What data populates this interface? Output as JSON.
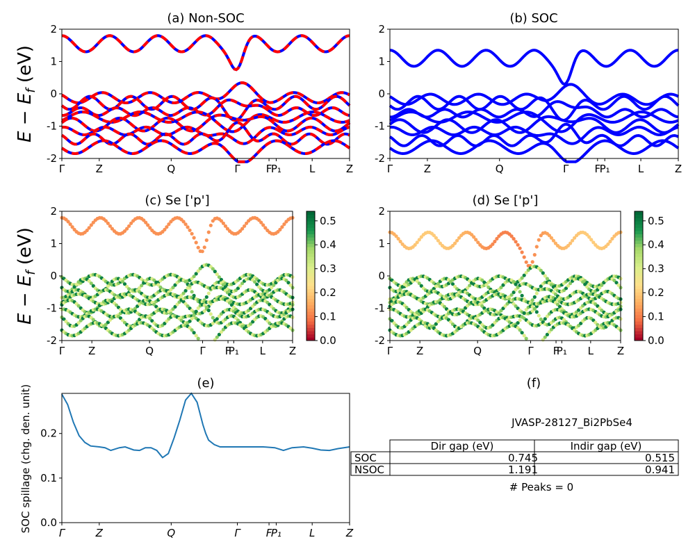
{
  "chart_data": [
    {
      "panel": "a",
      "type": "line",
      "title": "(a) Non-SOC",
      "ylabel": "E − E_f (eV)",
      "ylim": [
        -2,
        2
      ],
      "yticks": [
        -2,
        -1,
        0,
        1,
        2
      ],
      "xtick_labels": [
        "Γ",
        "Z",
        "Q",
        "Γ",
        "F",
        "P₁",
        "L",
        "Z"
      ],
      "series_colors": [
        "#0000ff",
        "#ff0000"
      ],
      "style": "blue solid bands overlaid by red dashed bands"
    },
    {
      "panel": "b",
      "type": "line",
      "title": "(b) SOC",
      "ylim": [
        -2,
        2
      ],
      "yticks": [
        -2,
        -1,
        0,
        1,
        2
      ],
      "xtick_labels": [
        "Γ",
        "Z",
        "Q",
        "Γ",
        "F",
        "P₁",
        "L",
        "Z"
      ],
      "series_colors": [
        "#0000ff"
      ]
    },
    {
      "panel": "c",
      "type": "scatter",
      "title": "(c)  Se ['p']",
      "ylabel": "E − E_f (eV)",
      "ylim": [
        -2,
        2
      ],
      "yticks": [
        -2,
        -1,
        0,
        1,
        2
      ],
      "xtick_labels": [
        "Γ",
        "Z",
        "Q",
        "Γ",
        "F",
        "P₁",
        "L",
        "Z"
      ],
      "colorbar": {
        "min": 0.0,
        "max": 0.54,
        "ticks": [
          "0.0",
          "0.1",
          "0.2",
          "0.3",
          "0.4",
          "0.5"
        ],
        "colormap": "RdYlGn"
      }
    },
    {
      "panel": "d",
      "type": "scatter",
      "title": "(d) Se ['p']",
      "ylim": [
        -2,
        2
      ],
      "yticks": [
        -2,
        -1,
        0,
        1,
        2
      ],
      "xtick_labels": [
        "Γ",
        "Z",
        "Q",
        "Γ",
        "F",
        "P₁",
        "L",
        "Z"
      ],
      "colorbar": {
        "min": 0.0,
        "max": 0.54,
        "ticks": [
          "0.0",
          "0.1",
          "0.2",
          "0.3",
          "0.4",
          "0.5"
        ],
        "colormap": "RdYlGn"
      }
    },
    {
      "panel": "e",
      "type": "line",
      "title": "(e)",
      "ylabel": "SOC spillage (chg. den. unit)",
      "ylim": [
        0.0,
        0.29
      ],
      "yticks": [
        "0.0",
        "0.1",
        "0.2"
      ],
      "xtick_labels": [
        "Γ",
        "Z",
        "Q",
        "Γ",
        "F",
        "P₁",
        "L",
        "Z"
      ],
      "color": "#1f77b4",
      "x": [
        0,
        0.02,
        0.04,
        0.06,
        0.08,
        0.1,
        0.13,
        0.15,
        0.17,
        0.2,
        0.22,
        0.25,
        0.27,
        0.29,
        0.31,
        0.33,
        0.35,
        0.37,
        0.39,
        0.41,
        0.43,
        0.45,
        0.47,
        0.49,
        0.5,
        0.51,
        0.53,
        0.55,
        0.57,
        0.6,
        0.63,
        0.67,
        0.7,
        0.74,
        0.77,
        0.8,
        0.84,
        0.87,
        0.9,
        0.93,
        0.96,
        1.0
      ],
      "y": [
        0.288,
        0.265,
        0.225,
        0.195,
        0.18,
        0.172,
        0.17,
        0.168,
        0.162,
        0.168,
        0.17,
        0.163,
        0.162,
        0.168,
        0.168,
        0.162,
        0.146,
        0.155,
        0.19,
        0.23,
        0.275,
        0.29,
        0.27,
        0.22,
        0.2,
        0.185,
        0.175,
        0.17,
        0.17,
        0.17,
        0.17,
        0.17,
        0.17,
        0.168,
        0.162,
        0.168,
        0.17,
        0.167,
        0.163,
        0.162,
        0.166,
        0.17
      ]
    },
    {
      "panel": "f",
      "type": "table",
      "title": "(f)",
      "caption": "JVASP-28127_Bi2PbSe4",
      "columns": [
        "Dir gap (eV)",
        "Indir gap (eV)"
      ],
      "rows": [
        {
          "label": "SOC",
          "values": [
            "0.745",
            "0.515"
          ]
        },
        {
          "label": "NSOC",
          "values": [
            "1.191",
            "0.941"
          ]
        }
      ],
      "footer": "# Peaks = 0"
    }
  ]
}
